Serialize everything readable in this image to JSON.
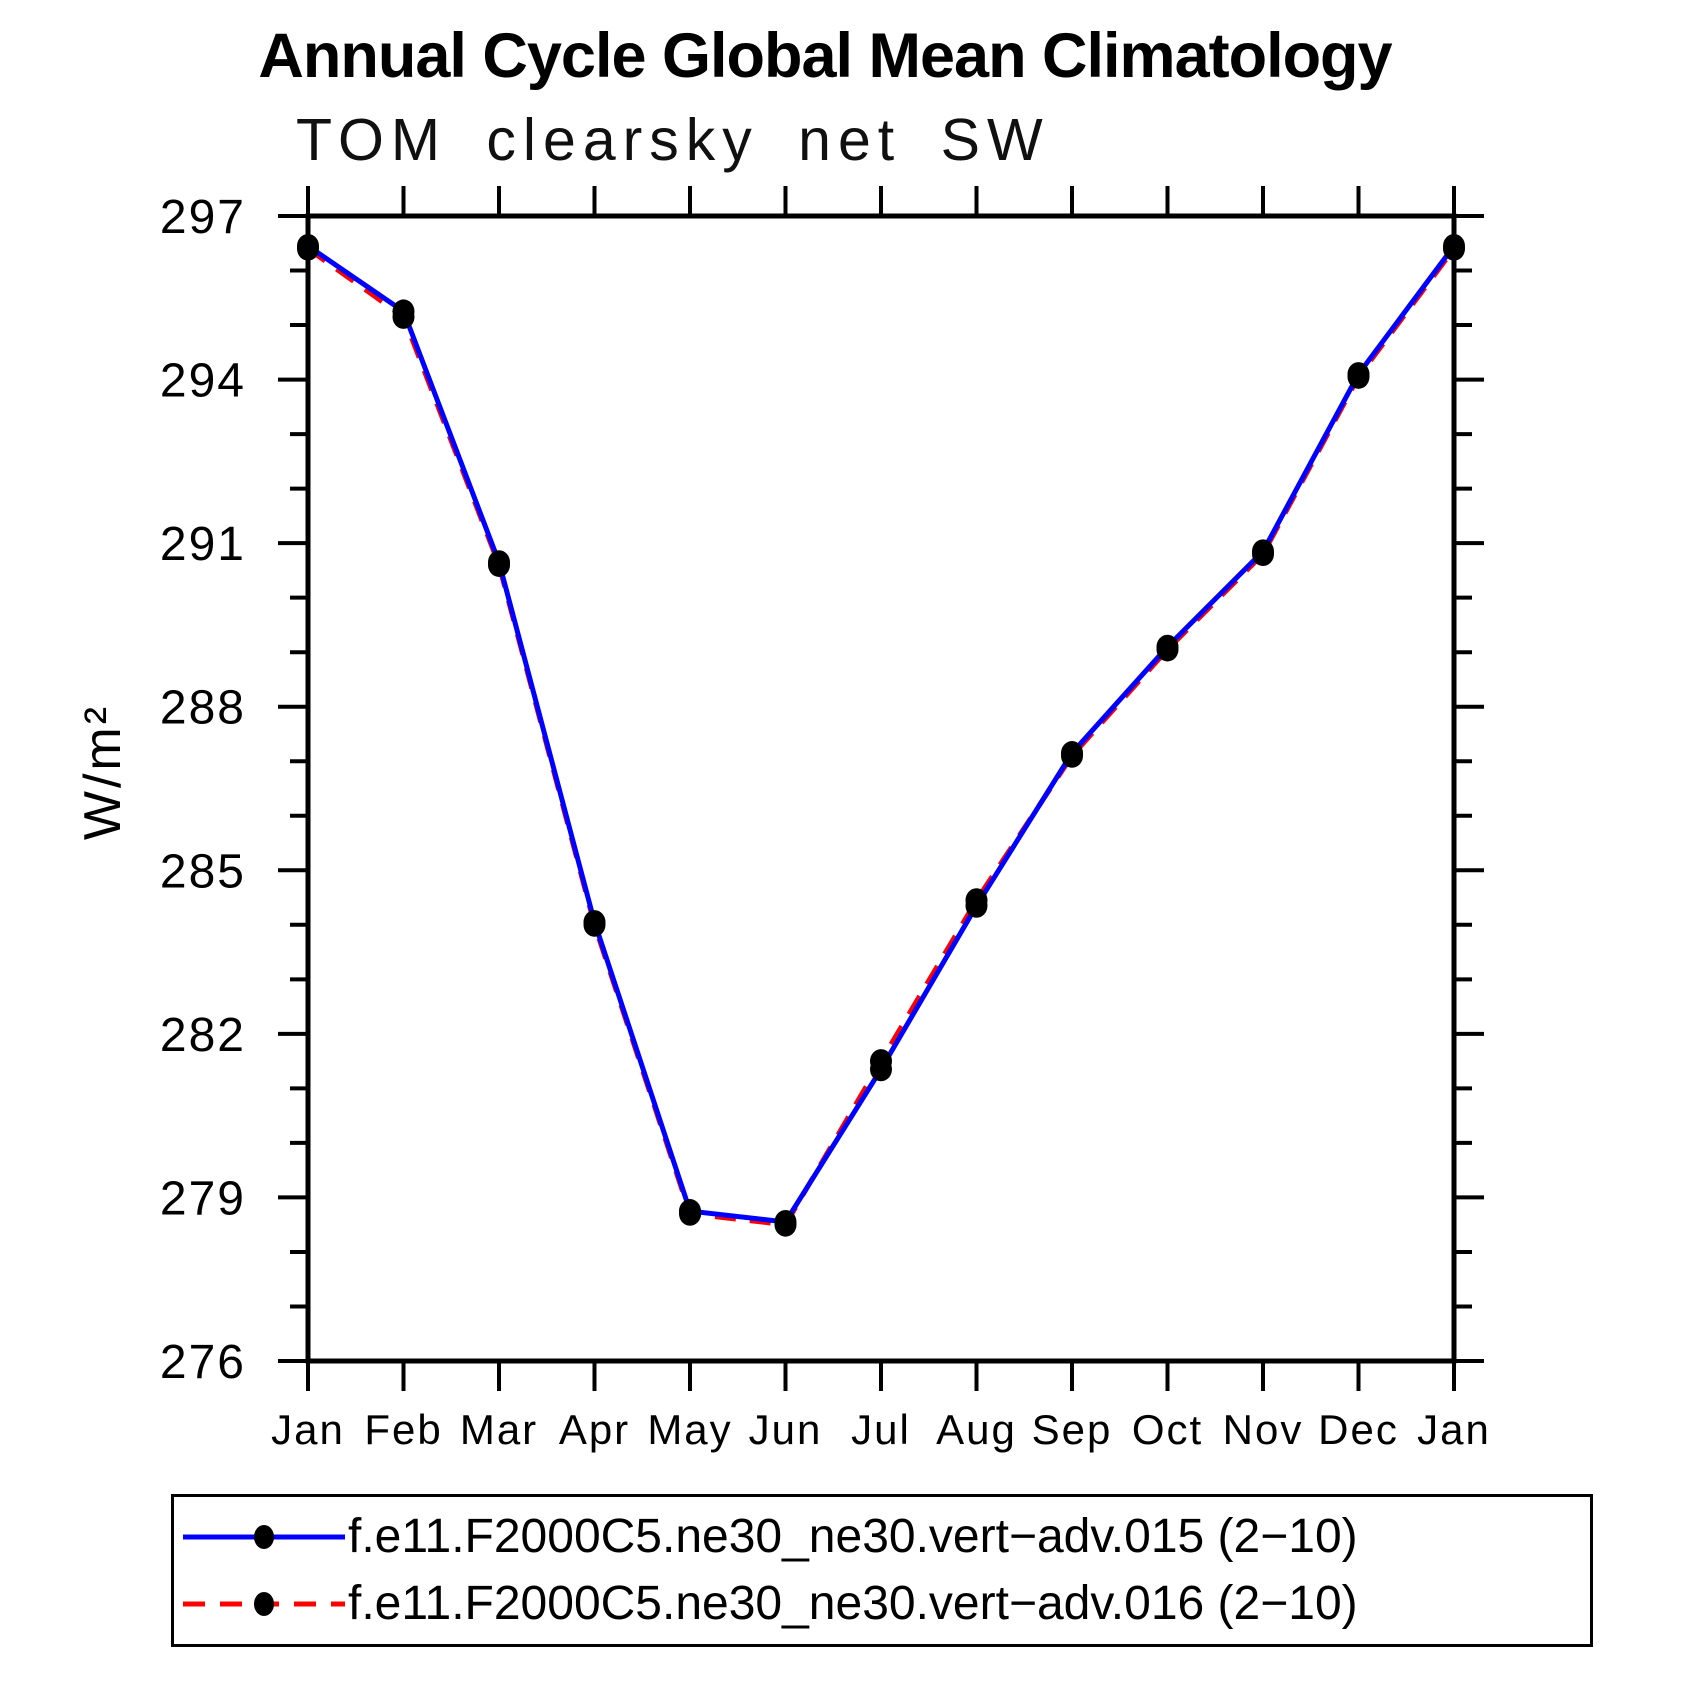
{
  "title": "Annual Cycle Global Mean Climatology",
  "subtitle": "TOM clearsky net SW",
  "y_axis_label": "W/m²",
  "colors": {
    "axis": "#000000",
    "text": "#000000",
    "series1": "#0000ff",
    "series2": "#ff0000",
    "marker": "#000000",
    "background": "#ffffff"
  },
  "chart_data": {
    "type": "line",
    "title": "Annual Cycle Global Mean Climatology",
    "subtitle": "TOM clearsky net SW",
    "xlabel": "",
    "ylabel": "W/m²",
    "categories": [
      "Jan",
      "Feb",
      "Mar",
      "Apr",
      "May",
      "Jun",
      "Jul",
      "Aug",
      "Sep",
      "Oct",
      "Nov",
      "Dec",
      "Jan"
    ],
    "ylim": [
      276,
      297
    ],
    "y_major_step": 3,
    "y_minor_step": 1,
    "y_major_ticks": [
      276,
      279,
      282,
      285,
      288,
      291,
      294,
      297
    ],
    "grid": false,
    "legend_position": "bottom",
    "series": [
      {
        "name": "f.e11.F2000C5.ne30_ne30.vert−adv.015 (2−10)",
        "color": "#0000ff",
        "style": "solid",
        "marker": "filled-circle",
        "marker_color": "#000000",
        "values": [
          296.45,
          295.25,
          290.65,
          284.05,
          278.75,
          278.55,
          281.35,
          284.35,
          287.15,
          289.1,
          290.85,
          294.1,
          296.45
        ]
      },
      {
        "name": "f.e11.F2000C5.ne30_ne30.vert−adv.016 (2−10)",
        "color": "#ff0000",
        "style": "dashed",
        "marker": "filled-circle",
        "marker_color": "#000000",
        "values": [
          296.4,
          295.15,
          290.6,
          284.0,
          278.7,
          278.5,
          281.5,
          284.45,
          287.1,
          289.05,
          290.8,
          294.05,
          296.4
        ]
      }
    ]
  }
}
